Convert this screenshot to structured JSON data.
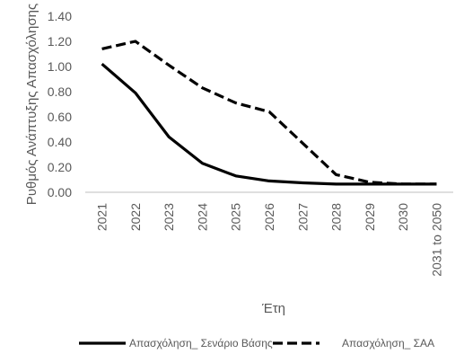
{
  "chart_data": {
    "type": "line",
    "title": "",
    "xlabel": "Έτη",
    "ylabel": "Ρυθμός Ανάπτυξης Απασχόλησης",
    "categories": [
      "2021",
      "2022",
      "2023",
      "2024",
      "2025",
      "2026",
      "2027",
      "2028",
      "2029",
      "2030",
      "2031 to 2050"
    ],
    "ylim": [
      0,
      1.4
    ],
    "yticks": [
      "0.00",
      "0.20",
      "0.40",
      "0.60",
      "0.80",
      "1.00",
      "1.20",
      "1.40"
    ],
    "grid": false,
    "legend_position": "bottom",
    "series": [
      {
        "name": "Απασχόληση_ Σενάριο Βάσης",
        "style": "solid",
        "color": "#000000",
        "values": [
          1.02,
          0.79,
          0.44,
          0.23,
          0.13,
          0.09,
          0.075,
          0.065,
          0.065,
          0.065,
          0.065
        ]
      },
      {
        "name": "Απασχόληση_ ΣΑΑ",
        "style": "dashed",
        "color": "#000000",
        "values": [
          1.14,
          1.2,
          1.01,
          0.83,
          0.71,
          0.64,
          0.39,
          0.14,
          0.08,
          0.065,
          0.065
        ]
      }
    ]
  }
}
